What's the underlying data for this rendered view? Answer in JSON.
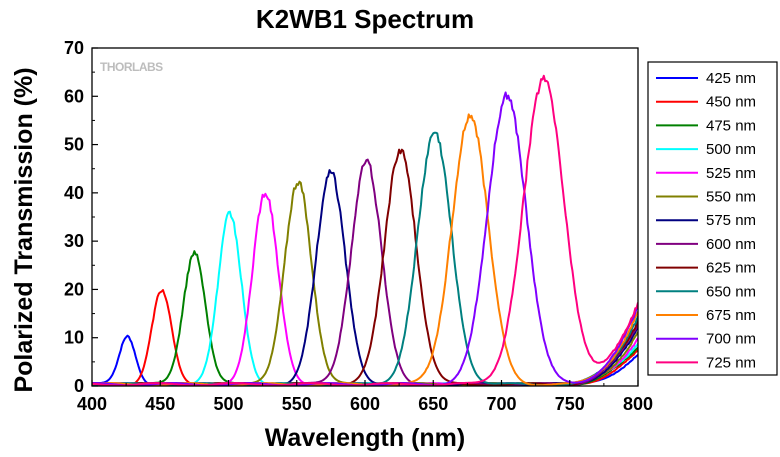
{
  "chart_data": {
    "type": "line",
    "title": "K2WB1 Spectrum",
    "xlabel": "Wavelength (nm)",
    "ylabel": "Polarized Transmission (%)",
    "xlim": [
      400,
      800
    ],
    "ylim": [
      0,
      70
    ],
    "xticks": [
      400,
      450,
      500,
      550,
      600,
      650,
      700,
      750,
      800
    ],
    "yticks": [
      0,
      10,
      20,
      30,
      40,
      50,
      60,
      70
    ],
    "grid": false,
    "legend_position": "right",
    "watermark": "THORLABS",
    "series": [
      {
        "name": "425 nm",
        "color": "#0000ff",
        "center": 426,
        "peak": 10.0,
        "fwhm": 14
      },
      {
        "name": "450 nm",
        "color": "#ff0000",
        "center": 451,
        "peak": 19.3,
        "fwhm": 17
      },
      {
        "name": "475 nm",
        "color": "#008000",
        "center": 475,
        "peak": 27.5,
        "fwhm": 19
      },
      {
        "name": "500 nm",
        "color": "#00ffff",
        "center": 501,
        "peak": 35.2,
        "fwhm": 20
      },
      {
        "name": "525 nm",
        "color": "#ff00ff",
        "center": 527,
        "peak": 39.7,
        "fwhm": 22
      },
      {
        "name": "550 nm",
        "color": "#808000",
        "center": 551,
        "peak": 42.3,
        "fwhm": 23
      },
      {
        "name": "575 nm",
        "color": "#000080",
        "center": 575,
        "peak": 43.6,
        "fwhm": 25
      },
      {
        "name": "600 nm",
        "color": "#800080",
        "center": 601,
        "peak": 46.3,
        "fwhm": 26
      },
      {
        "name": "625 nm",
        "color": "#800000",
        "center": 626,
        "peak": 48.7,
        "fwhm": 27
      },
      {
        "name": "650 nm",
        "color": "#008080",
        "center": 651,
        "peak": 51.9,
        "fwhm": 29
      },
      {
        "name": "675 nm",
        "color": "#ff8000",
        "center": 677,
        "peak": 55.8,
        "fwhm": 31
      },
      {
        "name": "700 nm",
        "color": "#8000ff",
        "center": 704,
        "peak": 60.0,
        "fwhm": 33
      },
      {
        "name": "725 nm",
        "color": "#ff0080",
        "center": 731,
        "peak": 63.0,
        "fwhm": 35
      }
    ]
  }
}
